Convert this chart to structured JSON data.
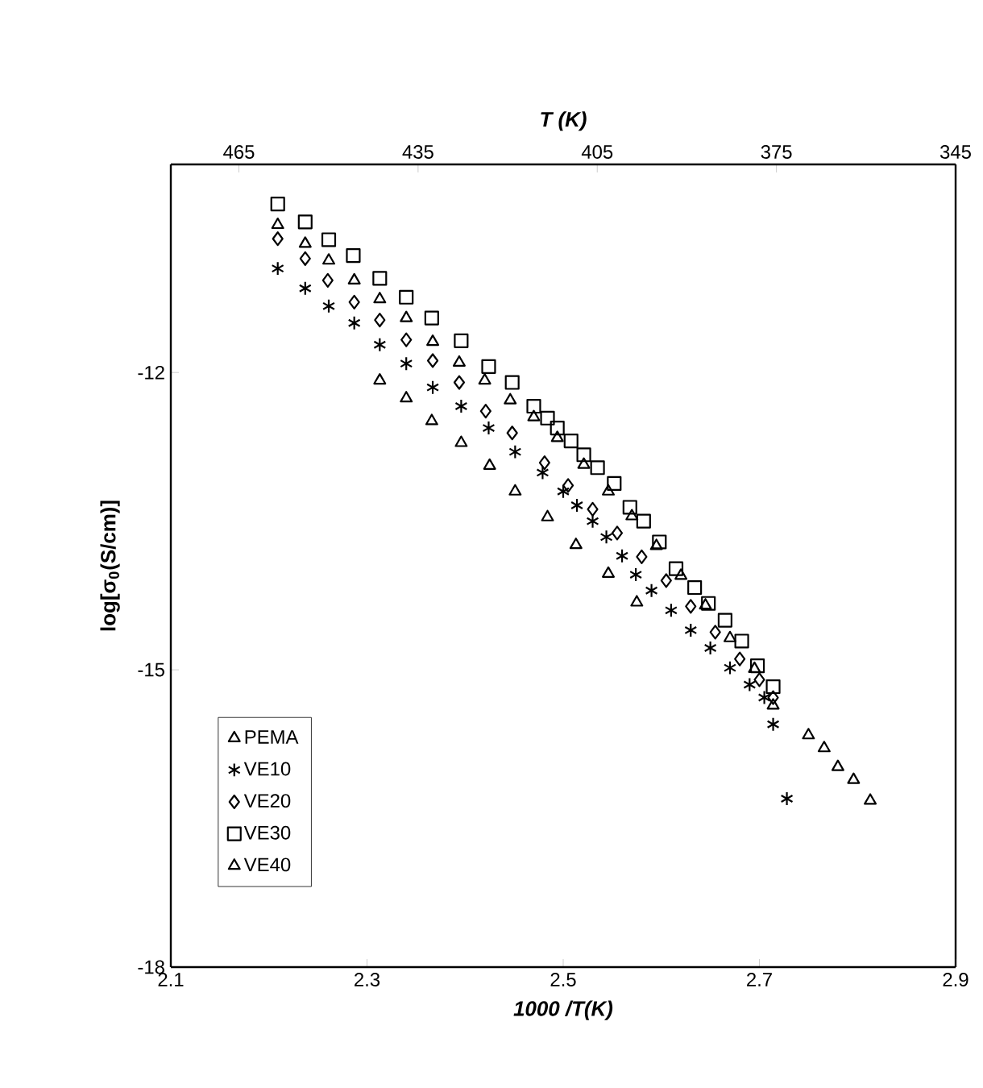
{
  "chart_data": {
    "type": "scatter",
    "xlabel": "1000 /T(K)",
    "x2label": "T (K)",
    "ylabel": "log[σ$_{0}$(S/cm)]",
    "xlim": [
      2.1,
      2.9
    ],
    "xticks": [
      2.1,
      2.3,
      2.5,
      2.7,
      2.9
    ],
    "ylim": [
      -18,
      -9.9
    ],
    "yticks": [
      -12,
      -15,
      -18
    ],
    "x2lim": [
      476.4,
      345
    ],
    "x2ticks": [
      465,
      435,
      405,
      375,
      345
    ],
    "legend": "bottom left",
    "grid": false,
    "series": [
      {
        "name": "PEMA",
        "color": "#000000",
        "marker": "triangle",
        "x": [
          2.313,
          2.34,
          2.366,
          2.396,
          2.425,
          2.451,
          2.484,
          2.513,
          2.546,
          2.575,
          2.75,
          2.766,
          2.78,
          2.796,
          2.813
        ],
        "values": [
          -12.08,
          -12.26,
          -12.49,
          -12.71,
          -12.94,
          -13.2,
          -13.46,
          -13.74,
          -14.03,
          -14.32,
          -15.66,
          -15.79,
          -15.98,
          -16.11,
          -16.32
        ]
      },
      {
        "name": "VE10",
        "color": "#000000",
        "marker": "cross",
        "x": [
          2.209,
          2.237,
          2.261,
          2.287,
          2.313,
          2.34,
          2.367,
          2.396,
          2.424,
          2.451,
          2.479,
          2.5,
          2.514,
          2.53,
          2.544,
          2.56,
          2.574,
          2.59,
          2.61,
          2.63,
          2.65,
          2.67,
          2.69,
          2.705,
          2.714,
          2.728
        ],
        "values": [
          -10.95,
          -11.15,
          -11.33,
          -11.5,
          -11.72,
          -11.91,
          -12.15,
          -12.34,
          -12.56,
          -12.8,
          -13.01,
          -13.2,
          -13.34,
          -13.5,
          -13.66,
          -13.85,
          -14.04,
          -14.2,
          -14.4,
          -14.6,
          -14.78,
          -14.98,
          -15.15,
          -15.28,
          -15.55,
          -16.3
        ]
      },
      {
        "name": "VE20",
        "color": "#000000",
        "marker": "diamond",
        "x": [
          2.209,
          2.237,
          2.26,
          2.287,
          2.313,
          2.34,
          2.367,
          2.394,
          2.421,
          2.448,
          2.481,
          2.505,
          2.53,
          2.555,
          2.58,
          2.605,
          2.63,
          2.655,
          2.68,
          2.7,
          2.714
        ],
        "values": [
          -10.65,
          -10.85,
          -11.07,
          -11.29,
          -11.47,
          -11.67,
          -11.88,
          -12.1,
          -12.39,
          -12.61,
          -12.91,
          -13.14,
          -13.38,
          -13.62,
          -13.86,
          -14.1,
          -14.36,
          -14.62,
          -14.89,
          -15.1,
          -15.28
        ]
      },
      {
        "name": "VE30",
        "color": "#000000",
        "marker": "square",
        "x": [
          2.209,
          2.237,
          2.261,
          2.286,
          2.313,
          2.34,
          2.366,
          2.396,
          2.424,
          2.448,
          2.47,
          2.484,
          2.494,
          2.508,
          2.521,
          2.535,
          2.552,
          2.568,
          2.582,
          2.598,
          2.615,
          2.634,
          2.648,
          2.665,
          2.682,
          2.698,
          2.714
        ],
        "values": [
          -10.3,
          -10.48,
          -10.66,
          -10.82,
          -11.05,
          -11.24,
          -11.45,
          -11.68,
          -11.94,
          -12.1,
          -12.34,
          -12.46,
          -12.56,
          -12.69,
          -12.83,
          -12.96,
          -13.12,
          -13.36,
          -13.5,
          -13.71,
          -13.98,
          -14.17,
          -14.33,
          -14.5,
          -14.71,
          -14.96,
          -15.17
        ]
      },
      {
        "name": "VE40",
        "color": "#000000",
        "marker": "triangle",
        "x": [
          2.209,
          2.237,
          2.261,
          2.287,
          2.313,
          2.34,
          2.367,
          2.394,
          2.42,
          2.446,
          2.47,
          2.494,
          2.521,
          2.546,
          2.57,
          2.595,
          2.62,
          2.645,
          2.67,
          2.695,
          2.714
        ],
        "values": [
          -10.51,
          -10.7,
          -10.87,
          -11.07,
          -11.26,
          -11.45,
          -11.69,
          -11.9,
          -12.08,
          -12.28,
          -12.45,
          -12.66,
          -12.93,
          -13.2,
          -13.45,
          -13.75,
          -14.05,
          -14.35,
          -14.68,
          -14.99,
          -15.36
        ]
      }
    ]
  }
}
